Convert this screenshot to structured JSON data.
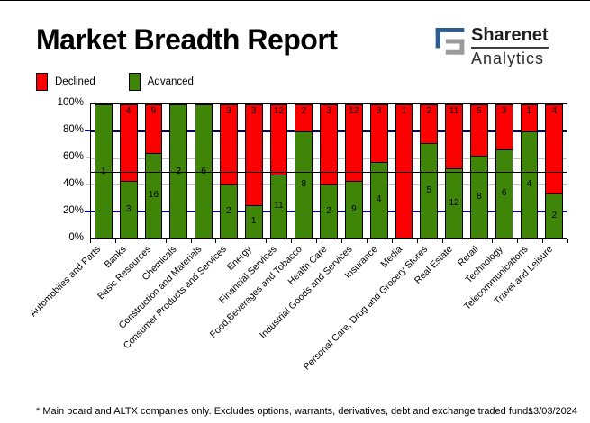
{
  "header": {
    "title": "Market Breadth Report",
    "logo": {
      "name": "Sharenet",
      "sub": "Analytics"
    }
  },
  "legend": {
    "declined_label": "Declined",
    "advanced_label": "Advanced"
  },
  "chart_data": {
    "type": "bar",
    "stacked": true,
    "title": "Market Breadth Report",
    "ylabel": "",
    "ylim": [
      0,
      100
    ],
    "y_axis_ticks": [
      "100%",
      "80%",
      "60%",
      "40%",
      "20%",
      "0%"
    ],
    "legend_position": "top-left",
    "value_semantics": "Each bar shows Declined vs Advanced counts scaled to 100%; numeric labels are raw counts of companies.",
    "categories": [
      "Automobiles and Parts",
      "Banks",
      "Basic Resources",
      "Chemicals",
      "Construction and Materials",
      "Consumer Products and Services",
      "Energy",
      "Financial Services",
      "Food,Beverages and Tobacco",
      "Health Care",
      "Industrial Goods and Services",
      "Insurance",
      "Media",
      "Personal Care, Drug and Grocery Stores",
      "Real Estate",
      "Retail",
      "Technology",
      "Telecommunications",
      "Travel and Leisure"
    ],
    "series": [
      {
        "name": "Declined",
        "color": "#fb0000",
        "values": [
          0,
          4,
          9,
          0,
          0,
          3,
          3,
          12,
          2,
          3,
          12,
          3,
          1,
          2,
          11,
          5,
          3,
          1,
          4
        ]
      },
      {
        "name": "Advanced",
        "color": "#3f8508",
        "values": [
          1,
          3,
          16,
          2,
          6,
          2,
          1,
          11,
          8,
          2,
          9,
          4,
          0,
          5,
          12,
          8,
          6,
          4,
          2
        ]
      }
    ],
    "gridlines": {
      "navy_at": [
        80,
        20
      ],
      "silver_at": [
        60,
        40
      ],
      "black_at": [
        50
      ]
    }
  },
  "colors": {
    "declined": "#fb0000",
    "advanced": "#3f8508",
    "grid_navy": "#000080",
    "grid_silver": "#c0c0c0",
    "logo_blue": "#2d5c8e",
    "logo_gray": "#9b9b9b"
  },
  "footer": {
    "note": "* Main board and ALTX companies only. Excludes options, warrants, derivatives, debt and exchange traded funds",
    "date": "13/03/2024"
  }
}
